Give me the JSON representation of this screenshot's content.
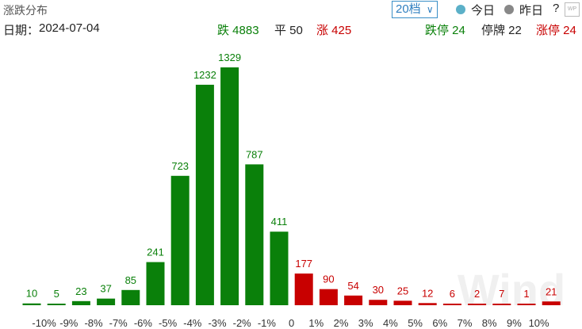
{
  "header": {
    "title": "涨跌分布",
    "range_select": "20档",
    "today": "今日",
    "yesterday": "昨日",
    "help": "?",
    "badge": "WP"
  },
  "stats": {
    "date_label": "日期：",
    "date": "2024-07-04",
    "down": "跌 4883",
    "flat": "平 50",
    "up": "涨 425",
    "limit_down": "跌停 24",
    "suspended": "停牌 22",
    "limit_up": "涨停 24"
  },
  "watermark": "Wind",
  "chart_data": {
    "type": "bar",
    "values": [
      10,
      5,
      23,
      37,
      85,
      241,
      723,
      1232,
      1329,
      787,
      411,
      177,
      90,
      54,
      30,
      25,
      12,
      6,
      2,
      7,
      1,
      21
    ],
    "colors": [
      "#0a800a",
      "#0a800a",
      "#0a800a",
      "#0a800a",
      "#0a800a",
      "#0a800a",
      "#0a800a",
      "#0a800a",
      "#0a800a",
      "#0a800a",
      "#0a800a",
      "#c80000",
      "#c80000",
      "#c80000",
      "#c80000",
      "#c80000",
      "#c80000",
      "#c80000",
      "#c80000",
      "#c80000",
      "#c80000",
      "#c80000"
    ],
    "boundary_labels": [
      "-10%",
      "-9%",
      "-8%",
      "-7%",
      "-6%",
      "-5%",
      "-4%",
      "-3%",
      "-2%",
      "-1%",
      "0",
      "1%",
      "2%",
      "3%",
      "4%",
      "5%",
      "6%",
      "7%",
      "8%",
      "9%",
      "10%"
    ]
  }
}
